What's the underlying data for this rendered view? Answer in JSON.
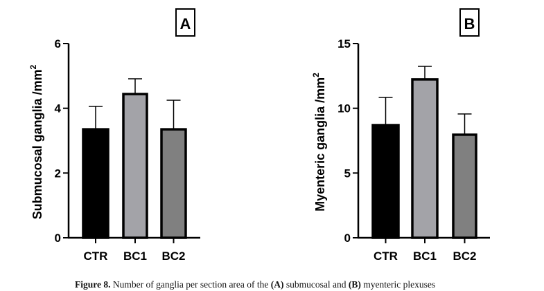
{
  "caption": {
    "label": "Figure 8.",
    "text_1": "Number of ganglia per section area of the",
    "ref_a": "(A)",
    "text_2": "submucosal and",
    "ref_b": "(B)",
    "text_3": "myenteric plexuses"
  },
  "chart_data": [
    {
      "type": "bar",
      "panel_label": "A",
      "ylabel": "Submucosal ganglia /mm",
      "ylabel_superscript": "2",
      "categories": [
        "CTR",
        "BC1",
        "BC2"
      ],
      "values": [
        3.35,
        4.44,
        3.35
      ],
      "error_upper": [
        4.06,
        4.91,
        4.25
      ],
      "bar_colors": [
        "#000000",
        "#a3a3a8",
        "#808080"
      ],
      "ylim": [
        0,
        6
      ],
      "yticks": [
        0,
        2,
        4,
        6
      ],
      "ytick_labels": [
        "0",
        "2",
        "4",
        "6"
      ],
      "grid": false
    },
    {
      "type": "bar",
      "panel_label": "B",
      "ylabel": "Myenteric ganglia /mm",
      "ylabel_superscript": "2",
      "categories": [
        "CTR",
        "BC1",
        "BC2"
      ],
      "values": [
        8.7,
        12.23,
        7.96
      ],
      "error_upper": [
        10.84,
        13.24,
        9.56
      ],
      "bar_colors": [
        "#000000",
        "#a3a3a8",
        "#808080"
      ],
      "ylim": [
        0,
        15
      ],
      "yticks": [
        0,
        5,
        10,
        15
      ],
      "ytick_labels": [
        "0",
        "5",
        "10",
        "15"
      ],
      "grid": false
    }
  ]
}
